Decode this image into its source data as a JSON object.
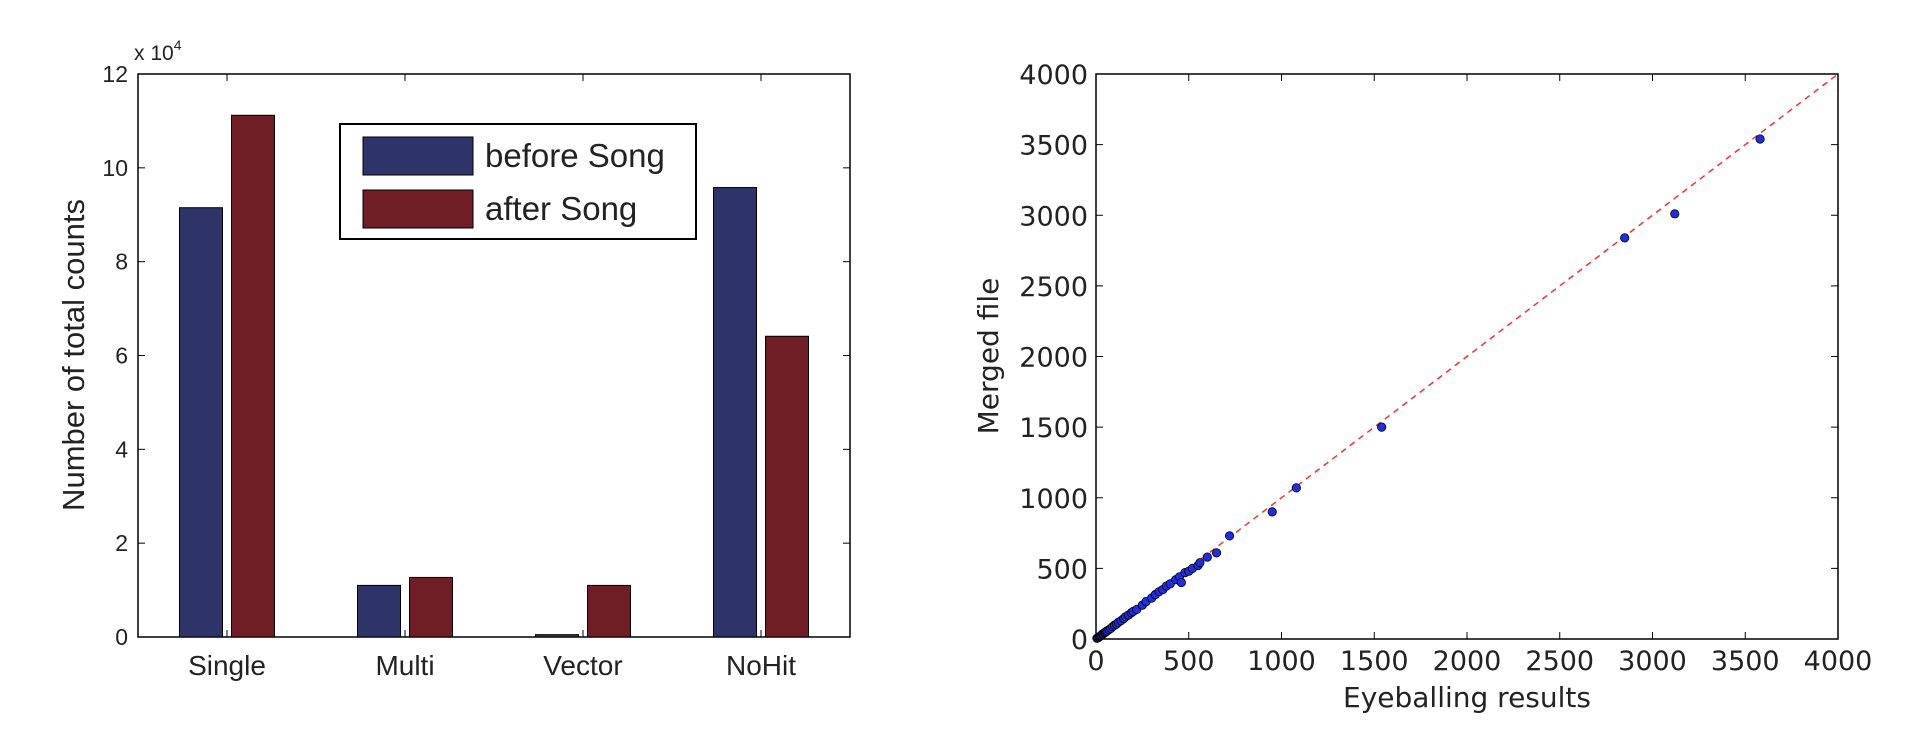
{
  "chart_data": [
    {
      "type": "bar",
      "categories": [
        "Single",
        "Multi",
        "Vector",
        "NoHit"
      ],
      "series": [
        {
          "name": "before Song",
          "color": "#2f3468",
          "values": [
            91500,
            11000,
            500,
            95800
          ]
        },
        {
          "name": "after Song",
          "color": "#6e1e24",
          "values": [
            111200,
            12700,
            11000,
            64100
          ]
        }
      ],
      "title": "",
      "xlabel": "",
      "ylabel": "Number of total counts",
      "ylim": [
        0,
        120000
      ],
      "y_scale_label": "x 10",
      "y_scale_exponent": "4",
      "y_ticks": [
        "0",
        "2",
        "4",
        "6",
        "8",
        "10",
        "12"
      ],
      "legend_position": "top-center",
      "grid": false
    },
    {
      "type": "scatter",
      "title": "",
      "xlabel": "Eyeballing results",
      "ylabel": "Merged file",
      "xlim": [
        0,
        4000
      ],
      "ylim": [
        0,
        4000
      ],
      "x_ticks": [
        "0",
        "500",
        "1000",
        "1500",
        "2000",
        "2500",
        "3000",
        "3500",
        "4000"
      ],
      "y_ticks": [
        "0",
        "500",
        "1000",
        "1500",
        "2000",
        "2500",
        "3000",
        "3500",
        "4000"
      ],
      "point_color": "#1f2fe0",
      "reference_line": {
        "from": [
          0,
          0
        ],
        "to": [
          4000,
          4000
        ],
        "color": "#ee3333",
        "style": "dashed"
      },
      "grid": false,
      "points": [
        [
          5,
          5
        ],
        [
          10,
          8
        ],
        [
          15,
          12
        ],
        [
          20,
          18
        ],
        [
          25,
          22
        ],
        [
          30,
          28
        ],
        [
          35,
          35
        ],
        [
          40,
          38
        ],
        [
          45,
          44
        ],
        [
          50,
          48
        ],
        [
          55,
          52
        ],
        [
          60,
          58
        ],
        [
          70,
          66
        ],
        [
          80,
          75
        ],
        [
          90,
          88
        ],
        [
          100,
          98
        ],
        [
          110,
          105
        ],
        [
          120,
          118
        ],
        [
          135,
          130
        ],
        [
          150,
          145
        ],
        [
          160,
          158
        ],
        [
          175,
          170
        ],
        [
          190,
          185
        ],
        [
          200,
          195
        ],
        [
          220,
          210
        ],
        [
          250,
          240
        ],
        [
          270,
          265
        ],
        [
          300,
          290
        ],
        [
          320,
          315
        ],
        [
          340,
          335
        ],
        [
          360,
          350
        ],
        [
          380,
          375
        ],
        [
          400,
          390
        ],
        [
          430,
          420
        ],
        [
          450,
          440
        ],
        [
          460,
          400
        ],
        [
          480,
          470
        ],
        [
          500,
          480
        ],
        [
          520,
          500
        ],
        [
          550,
          520
        ],
        [
          560,
          540
        ],
        [
          600,
          580
        ],
        [
          650,
          610
        ],
        [
          720,
          730
        ],
        [
          950,
          900
        ],
        [
          1080,
          1070
        ],
        [
          1540,
          1500
        ],
        [
          2850,
          2840
        ],
        [
          3120,
          3010
        ],
        [
          3580,
          3540
        ]
      ]
    }
  ]
}
